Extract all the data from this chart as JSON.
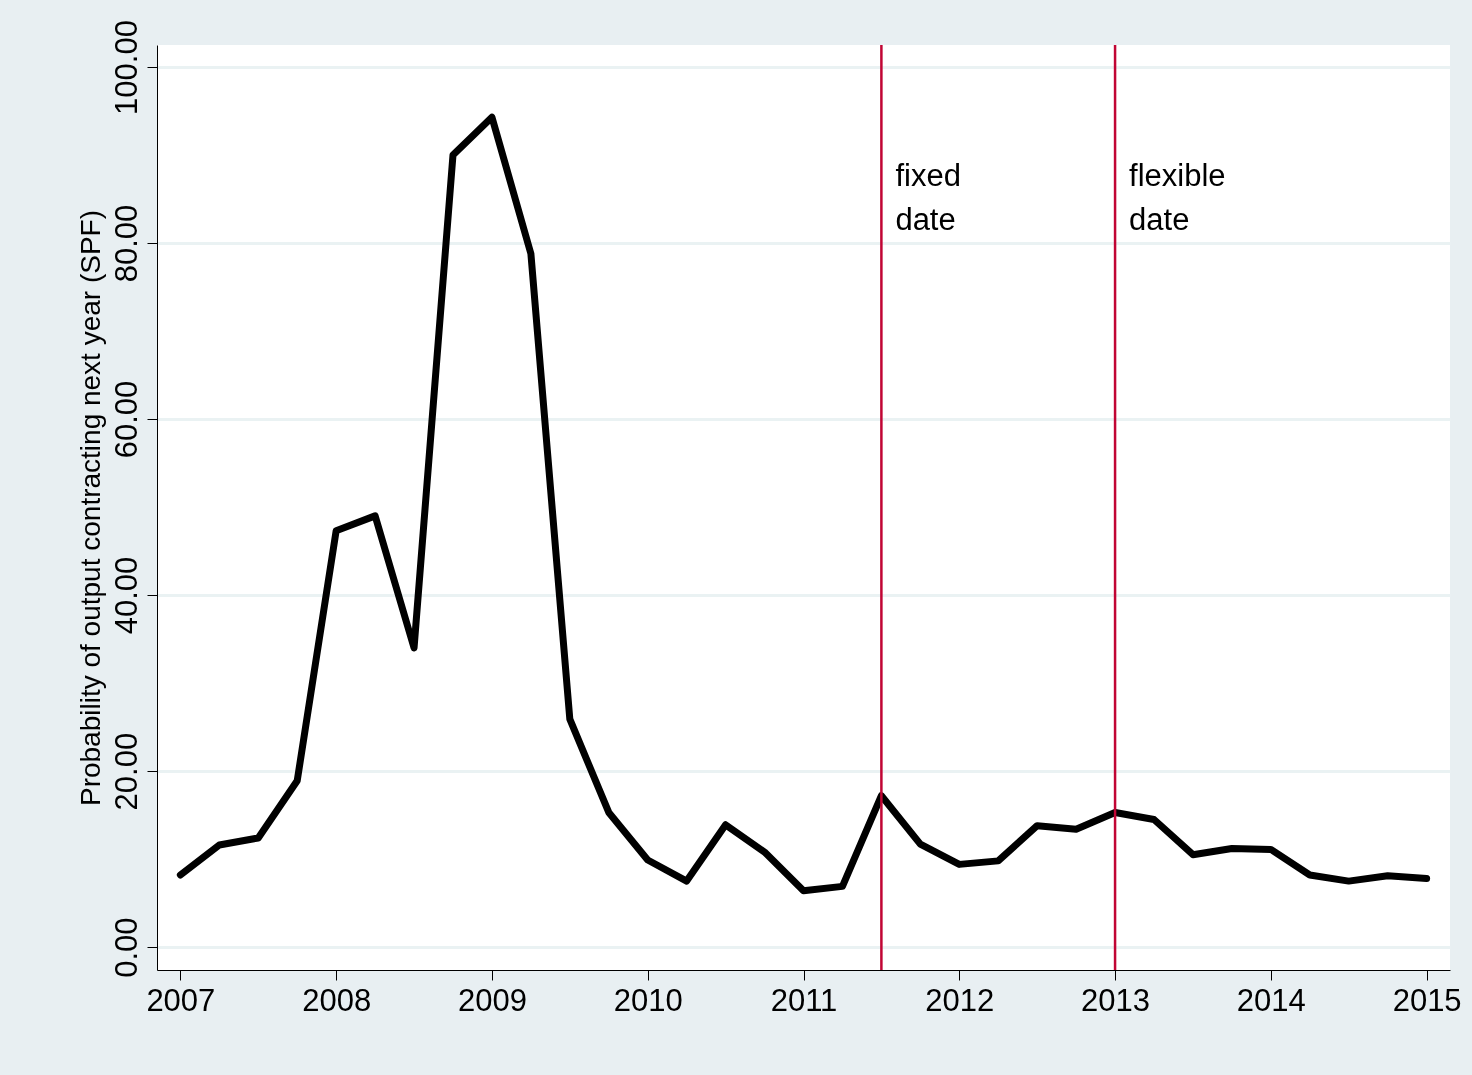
{
  "chart_data": {
    "type": "line",
    "ylabel": "Probability of output contracting next year (SPF)",
    "x": [
      2007,
      2007.25,
      2007.5,
      2007.75,
      2008,
      2008.25,
      2008.5,
      2008.75,
      2009,
      2009.25,
      2009.5,
      2009.75,
      2010,
      2010.25,
      2010.5,
      2010.75,
      2011,
      2011.25,
      2011.5,
      2011.75,
      2012,
      2012.25,
      2012.5,
      2012.75,
      2013,
      2013.25,
      2013.5,
      2013.75,
      2014,
      2014.25,
      2014.5,
      2014.75,
      2015
    ],
    "series": [
      {
        "color": "#000000",
        "values": [
          8.2,
          11.6,
          12.4,
          18.9,
          47.3,
          49.0,
          34.0,
          90.0,
          94.3,
          78.8,
          25.9,
          15.3,
          9.9,
          7.5,
          13.9,
          10.8,
          6.4,
          6.9,
          17.2,
          11.7,
          9.4,
          9.8,
          13.8,
          13.4,
          15.3,
          14.5,
          10.5,
          11.2,
          11.1,
          8.2,
          7.5,
          8.1,
          7.8
        ]
      }
    ],
    "xlim": [
      2006.85,
      2015.15
    ],
    "xticks": [
      2007,
      2008,
      2009,
      2010,
      2011,
      2012,
      2013,
      2014,
      2015
    ],
    "ylim": [
      -2.6,
      102.5
    ],
    "yticks": [
      {
        "value": 0,
        "label": "0.00"
      },
      {
        "value": 20,
        "label": "20.00"
      },
      {
        "value": 40,
        "label": "40.00"
      },
      {
        "value": 60,
        "label": "60.00"
      },
      {
        "value": 80,
        "label": "80.00"
      },
      {
        "value": 100,
        "label": "100.00"
      }
    ],
    "ref_lines": [
      {
        "axis": "x",
        "value": 2011.5,
        "label": "fixed\ndate",
        "color": "#c10534"
      },
      {
        "axis": "x",
        "value": 2013,
        "label": "flexible\ndate",
        "color": "#c10534"
      }
    ],
    "grid": "y",
    "marker": "none",
    "line_style": "solid"
  }
}
